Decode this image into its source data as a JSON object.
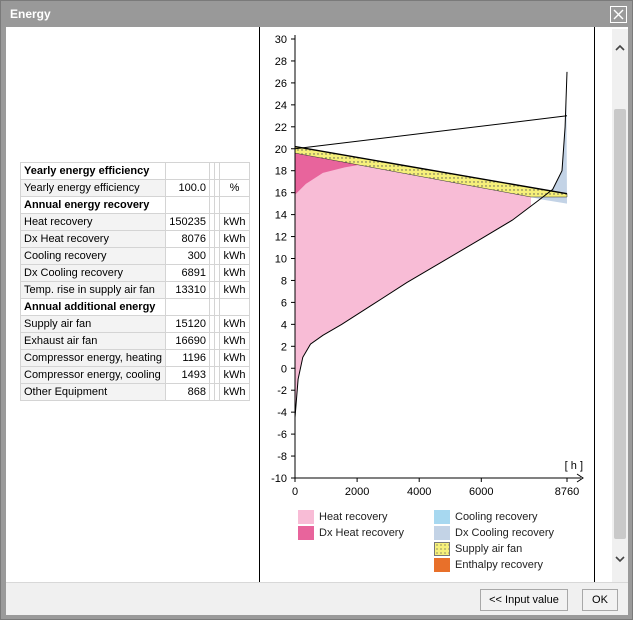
{
  "window": {
    "title": "Energy"
  },
  "table": {
    "rows": [
      {
        "type": "head",
        "label": "Yearly energy efficiency"
      },
      {
        "type": "row",
        "label": "Yearly energy efficiency",
        "value": "100.0",
        "unit": "%"
      },
      {
        "type": "head",
        "label": "Annual energy recovery"
      },
      {
        "type": "row",
        "label": "Heat recovery",
        "value": "150235",
        "unit": "kWh"
      },
      {
        "type": "row",
        "label": "Dx Heat recovery",
        "value": "8076",
        "unit": "kWh"
      },
      {
        "type": "row",
        "label": "Cooling recovery",
        "value": "300",
        "unit": "kWh"
      },
      {
        "type": "row",
        "label": "Dx Cooling recovery",
        "value": "6891",
        "unit": "kWh"
      },
      {
        "type": "row",
        "label": "Temp. rise in supply air fan",
        "value": "13310",
        "unit": "kWh"
      },
      {
        "type": "head",
        "label": "Annual additional energy"
      },
      {
        "type": "row",
        "label": "Supply air fan",
        "value": "15120",
        "unit": "kWh"
      },
      {
        "type": "row",
        "label": "Exhaust air fan",
        "value": "16690",
        "unit": "kWh"
      },
      {
        "type": "row",
        "label": "Compressor energy, heating",
        "value": "1196",
        "unit": "kWh"
      },
      {
        "type": "row",
        "label": "Compressor energy, cooling",
        "value": "1493",
        "unit": "kWh"
      },
      {
        "type": "row",
        "label": "Other Equipment",
        "value": "868",
        "unit": "kWh"
      }
    ]
  },
  "chart_data": {
    "type": "area",
    "xlabel": "[ h ]",
    "x_ticks": [
      "0",
      "2000",
      "4000",
      "6000",
      "8760"
    ],
    "y_ticks": [
      "-10",
      "-8",
      "-6",
      "-4",
      "-2",
      "0",
      "2",
      "4",
      "6",
      "8",
      "10",
      "12",
      "14",
      "16",
      "18",
      "20",
      "22",
      "24",
      "26",
      "28",
      "30"
    ],
    "xlim": [
      0,
      8760
    ],
    "ylim": [
      -10,
      30
    ],
    "outdoor_temperature": {
      "x": [
        0,
        100,
        250,
        500,
        900,
        1500,
        2500,
        3600,
        4800,
        6000,
        7000,
        7800,
        8300,
        8600,
        8700,
        8760
      ],
      "y": [
        -4.5,
        -1,
        1,
        2.2,
        3,
        4,
        5.8,
        7.8,
        9.8,
        11.8,
        13.5,
        15.2,
        16.3,
        18,
        22,
        27
      ]
    },
    "supply_air_before_fan": {
      "x": [
        0,
        7600
      ],
      "y": [
        19.6,
        15.6
      ]
    },
    "supply_air_after_fan": {
      "x": [
        0,
        8760
      ],
      "y": [
        20.2,
        15.9
      ]
    },
    "extract_air": {
      "x": [
        0,
        8760
      ],
      "y": [
        20,
        23
      ]
    },
    "colors": {
      "heat_recovery": "#f8bcd6",
      "dx_heat_recovery": "#e8649c",
      "cooling_recovery": "#a7d8f0",
      "dx_cooling_recovery": "#c3d3e6",
      "supply_air_fan": "#f6f07a",
      "enthalpy_recovery": "#e8702a"
    }
  },
  "legend": [
    {
      "label": "Heat recovery",
      "color": "#f8bcd6",
      "pattern": "none"
    },
    {
      "label": "Dx Heat recovery",
      "color": "#e8649c",
      "pattern": "none"
    },
    {
      "label": "Cooling recovery",
      "color": "#a7d8f0",
      "pattern": "none"
    },
    {
      "label": "Dx Cooling recovery",
      "color": "#c3d3e6",
      "pattern": "none"
    },
    {
      "label": "Supply air fan",
      "color": "#f6f07a",
      "pattern": "dots"
    },
    {
      "label": "Enthalpy recovery",
      "color": "#e8702a",
      "pattern": "none"
    }
  ],
  "buttons": {
    "input_value": "<< Input value",
    "ok": "OK"
  },
  "icons": {
    "close": "close-icon",
    "scroll_up": "chevron-up-icon",
    "scroll_down": "chevron-down-icon"
  }
}
